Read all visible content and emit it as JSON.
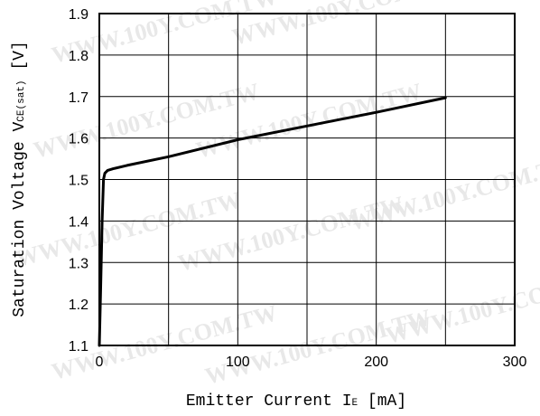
{
  "chart_data": {
    "type": "line",
    "xlabel": {
      "main": "Emitter Current",
      "symbol": "I",
      "sub": "E",
      "unit": "[mA]"
    },
    "ylabel": {
      "main": "Saturation Voltage",
      "symbol": "V",
      "sub": "CE(sat)",
      "unit": "[V]"
    },
    "xlim": [
      0,
      300
    ],
    "ylim": [
      1.1,
      1.9
    ],
    "xticks": [
      0,
      100,
      200,
      300
    ],
    "yticks": [
      1.1,
      1.2,
      1.3,
      1.4,
      1.5,
      1.6,
      1.7,
      1.8,
      1.9
    ],
    "xtick_labels": [
      "0",
      "100",
      "200",
      "300"
    ],
    "ytick_labels": [
      "1.1",
      "1.2",
      "1.3",
      "1.4",
      "1.5",
      "1.6",
      "1.7",
      "1.8",
      "1.9"
    ],
    "x_minor_grid_step": 50,
    "grid": true,
    "series": [
      {
        "color": "#000000",
        "points": [
          [
            0,
            1.1
          ],
          [
            1,
            1.24
          ],
          [
            2,
            1.4
          ],
          [
            3,
            1.5
          ],
          [
            4,
            1.515
          ],
          [
            6,
            1.522
          ],
          [
            10,
            1.526
          ],
          [
            20,
            1.534
          ],
          [
            50,
            1.555
          ],
          [
            100,
            1.596
          ],
          [
            150,
            1.629
          ],
          [
            200,
            1.662
          ],
          [
            250,
            1.697
          ]
        ]
      }
    ]
  },
  "watermark": {
    "text": "WWW.100Y.COM.TW",
    "color": "#e8e8e8"
  }
}
